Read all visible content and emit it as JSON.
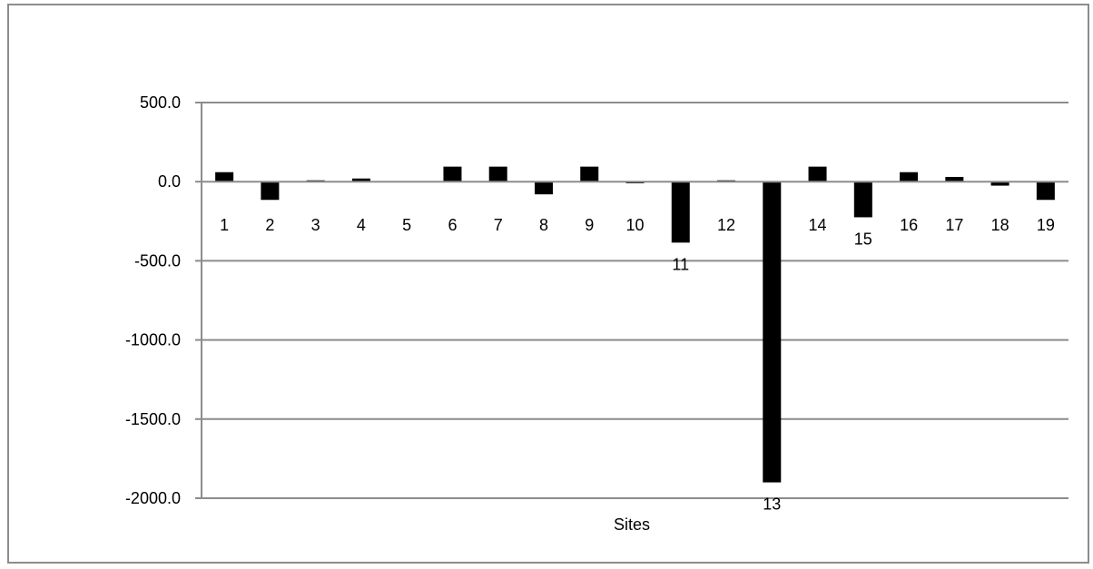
{
  "chart_data": {
    "type": "bar",
    "xlabel": "Sites",
    "ylabel": "",
    "ylim": [
      -2000,
      500
    ],
    "yticks": [
      500,
      0,
      -500,
      -1000,
      -1500,
      -2000
    ],
    "ytick_labels": [
      "500.0",
      "0.0",
      "-500.0",
      "-1000.0",
      "-1500.0",
      "-2000.0"
    ],
    "grid": true,
    "legend": "none",
    "categories": [
      "1",
      "2",
      "3",
      "4",
      "5",
      "6",
      "7",
      "8",
      "9",
      "10",
      "11",
      "12",
      "13",
      "14",
      "15",
      "16",
      "17",
      "18",
      "19"
    ],
    "values": [
      60,
      -115,
      5,
      20,
      0,
      95,
      95,
      -80,
      95,
      -10,
      -385,
      5,
      -1900,
      95,
      -225,
      60,
      30,
      -25,
      -115
    ],
    "colors": {
      "bar": "#000000",
      "grid": "#8c8c8c",
      "frame": "#8c8c8c"
    }
  }
}
